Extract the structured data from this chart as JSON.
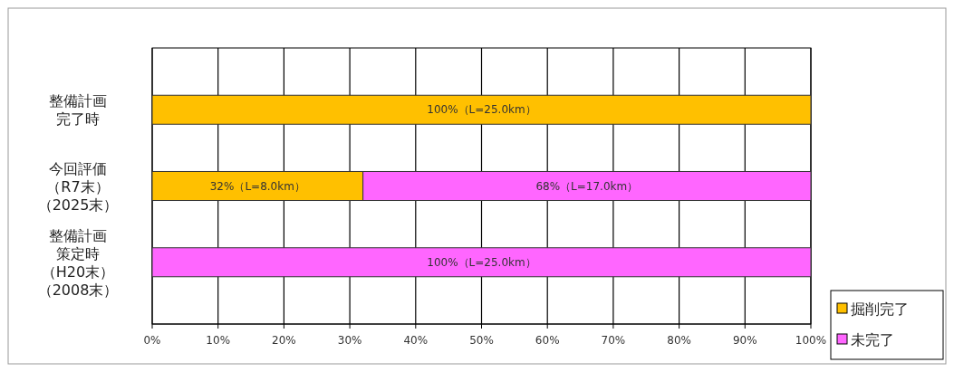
{
  "chart_data": {
    "type": "bar",
    "orientation": "horizontal",
    "stacked": true,
    "categories": [
      "整備計画完了時",
      "今回評価（R7末）（2025末）",
      "整備計画策定時（H20末）（2008末）"
    ],
    "series": [
      {
        "name": "掘削完了",
        "color": "#ffc000",
        "values": [
          100,
          32,
          0
        ],
        "value_labels": [
          "100%（L=25.0km）",
          "32%（L=8.0km）",
          null
        ]
      },
      {
        "name": "未完了",
        "color": "#ff66ff",
        "values": [
          0,
          68,
          100
        ],
        "value_labels": [
          null,
          "68%（L=17.0km）",
          "100%（L=25.0km）"
        ]
      }
    ],
    "xlim": [
      0,
      100
    ],
    "xticks": [
      {
        "value": 0,
        "label": "0%"
      },
      {
        "value": 10,
        "label": "10%"
      },
      {
        "value": 20,
        "label": "20%"
      },
      {
        "value": 30,
        "label": "30%"
      },
      {
        "value": 40,
        "label": "40%"
      },
      {
        "value": 50,
        "label": "50%"
      },
      {
        "value": 60,
        "label": "60%"
      },
      {
        "value": 70,
        "label": "70%"
      },
      {
        "value": 80,
        "label": "80%"
      },
      {
        "value": 90,
        "label": "90%"
      },
      {
        "value": 100,
        "label": "100%"
      }
    ],
    "grid": "x",
    "legend": "bottom right"
  }
}
